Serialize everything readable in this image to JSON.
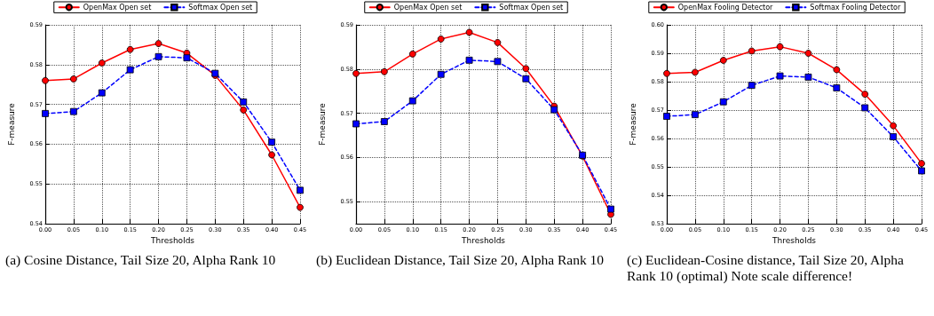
{
  "chart_data": [
    {
      "type": "line",
      "xlabel": "Thresholds",
      "ylabel": "F-measure",
      "legend": "top",
      "grid": true,
      "x": [
        0,
        0.05,
        0.1,
        0.15,
        0.2,
        0.25,
        0.3,
        0.35,
        0.4,
        0.45
      ],
      "xlim": [
        0,
        0.45
      ],
      "xticks": [
        {
          "value": 0,
          "label": "0.00"
        },
        0.05,
        {
          "value": 0.1,
          "label": "0.10"
        },
        0.15,
        {
          "value": 0.2,
          "label": "0.20"
        },
        0.25,
        {
          "value": 0.3,
          "label": "0.30"
        },
        0.35,
        {
          "value": 0.4,
          "label": "0.40"
        },
        0.45
      ],
      "ylim": [
        0.54,
        0.59
      ],
      "yticks": [
        0.54,
        0.55,
        0.56,
        0.57,
        0.58,
        0.59
      ],
      "series": [
        {
          "name": "OpenMax Open set",
          "color": "#ff0000",
          "marker": "circle",
          "line_style": "solid",
          "values": [
            0.576,
            0.5764,
            0.5804,
            0.5838,
            0.5853,
            0.5829,
            0.5773,
            0.5686,
            0.5573,
            0.5441
          ]
        },
        {
          "name": "Softmax Open set",
          "color": "#0000ff",
          "marker": "square",
          "line_style": "dashed",
          "values": [
            0.5677,
            0.5682,
            0.5729,
            0.5787,
            0.582,
            0.5817,
            0.5778,
            0.5706,
            0.5605,
            0.5484
          ]
        }
      ],
      "annotations": [
        "(a) Cosine Distance, Tail Size 20, Alpha Rank 10"
      ]
    },
    {
      "type": "line",
      "xlabel": "Thresholds",
      "ylabel": "F-measure",
      "legend": "top",
      "grid": true,
      "x": [
        0,
        0.05,
        0.1,
        0.15,
        0.2,
        0.25,
        0.3,
        0.35,
        0.4,
        0.45
      ],
      "xlim": [
        0,
        0.45
      ],
      "xticks": [
        {
          "value": 0,
          "label": "0.00"
        },
        0.05,
        {
          "value": 0.1,
          "label": "0.10"
        },
        0.15,
        {
          "value": 0.2,
          "label": "0.20"
        },
        0.25,
        {
          "value": 0.3,
          "label": "0.30"
        },
        0.35,
        {
          "value": 0.4,
          "label": "0.40"
        },
        0.45
      ],
      "ylim": [
        0.545,
        0.59
      ],
      "yticks": [
        0.55,
        0.56,
        0.57,
        0.58,
        0.59
      ],
      "series": [
        {
          "name": "OpenMax Open set",
          "color": "#ff0000",
          "marker": "circle",
          "line_style": "solid",
          "values": [
            0.579,
            0.5794,
            0.5834,
            0.5868,
            0.5883,
            0.586,
            0.5801,
            0.5716,
            0.5603,
            0.5471
          ]
        },
        {
          "name": "Softmax Open set",
          "color": "#0000ff",
          "marker": "square",
          "line_style": "dashed",
          "values": [
            0.5676,
            0.5681,
            0.5728,
            0.5788,
            0.582,
            0.5817,
            0.5778,
            0.5708,
            0.5605,
            0.5483
          ]
        }
      ],
      "annotations": [
        "(b) Euclidean Distance, Tail Size 20, Alpha Rank 10"
      ]
    },
    {
      "type": "line",
      "xlabel": "Thresholds",
      "ylabel": "F-measure",
      "legend": "top",
      "grid": true,
      "x": [
        0,
        0.05,
        0.1,
        0.15,
        0.2,
        0.25,
        0.3,
        0.35,
        0.4,
        0.45
      ],
      "xlim": [
        0,
        0.45
      ],
      "xticks": [
        {
          "value": 0,
          "label": "0.00"
        },
        0.05,
        {
          "value": 0.1,
          "label": "0.10"
        },
        0.15,
        {
          "value": 0.2,
          "label": "0.20"
        },
        0.25,
        {
          "value": 0.3,
          "label": "0.30"
        },
        0.35,
        {
          "value": 0.4,
          "label": "0.40"
        },
        0.45
      ],
      "ylim": [
        0.53,
        0.6
      ],
      "yticks": [
        0.53,
        0.54,
        0.55,
        0.56,
        0.57,
        0.58,
        0.59,
        {
          "value": 0.6,
          "label": "0.60"
        }
      ],
      "series": [
        {
          "name": "OpenMax Fooling Detector",
          "color": "#ff0000",
          "marker": "circle",
          "line_style": "solid",
          "values": [
            0.5829,
            0.5833,
            0.5875,
            0.5908,
            0.5923,
            0.59,
            0.5842,
            0.5756,
            0.5645,
            0.5512
          ]
        },
        {
          "name": "Softmax Fooling Detector",
          "color": "#0000ff",
          "marker": "square",
          "line_style": "dashed",
          "values": [
            0.5678,
            0.5684,
            0.5729,
            0.5787,
            0.582,
            0.5816,
            0.5778,
            0.5708,
            0.5606,
            0.5486
          ]
        }
      ],
      "annotations": [
        "(c) Euclidean-Cosine distance, Tail Size 20, Alpha Rank 10 (optimal) Note scale difference!"
      ]
    }
  ]
}
